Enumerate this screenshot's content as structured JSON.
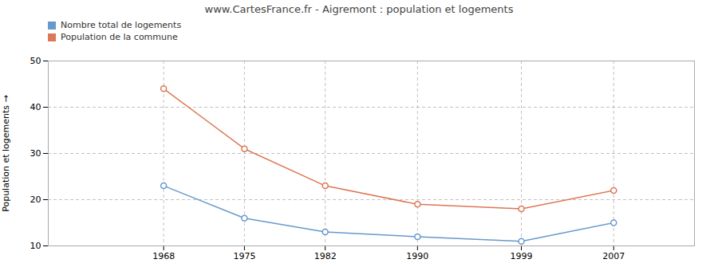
{
  "chart_data": {
    "type": "line",
    "title": "www.CartesFrance.fr - Aigremont : population et logements",
    "ylabel": "Population et logements",
    "x": [
      1968,
      1975,
      1982,
      1990,
      1999,
      2007
    ],
    "xlim": [
      1958,
      2014
    ],
    "xticks": [
      1968,
      1975,
      1982,
      1990,
      1999,
      2007
    ],
    "ylim": [
      10,
      50
    ],
    "yticks": [
      10,
      20,
      30,
      40,
      50
    ],
    "grid": true,
    "legend": "top",
    "marker": "circle",
    "series": [
      {
        "name": "Nombre total de logements",
        "color": "#6699cc",
        "values": [
          23,
          16,
          13,
          12,
          11,
          15
        ]
      },
      {
        "name": "Population de la commune",
        "color": "#dd7755",
        "values": [
          44,
          31,
          23,
          19,
          18,
          22
        ]
      }
    ]
  }
}
